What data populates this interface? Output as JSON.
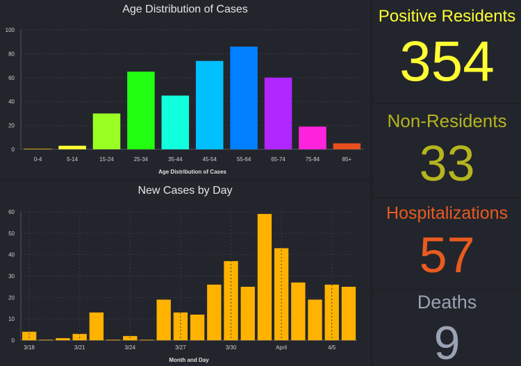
{
  "chart_data": [
    {
      "type": "bar",
      "title": "Age Distribution of Cases",
      "xlabel": "Age Distribution of Cases",
      "ylabel": "",
      "ylim": [
        0,
        100
      ],
      "yticks": [
        0,
        20,
        40,
        60,
        80,
        100
      ],
      "grid": true,
      "categories": [
        "0-4",
        "5-14",
        "15-24",
        "25-34",
        "35-44",
        "45-54",
        "55-64",
        "65-74",
        "75-84",
        "85+"
      ],
      "values": [
        0.5,
        3,
        30,
        65,
        45,
        74,
        86,
        60,
        19,
        5
      ],
      "colors": [
        "#e0b000",
        "#ffff33",
        "#99ff22",
        "#22ff11",
        "#11ffdd",
        "#00c0ff",
        "#0080ff",
        "#b026ff",
        "#ff22dd",
        "#e84f1c"
      ]
    },
    {
      "type": "bar",
      "title": "New Cases by Day",
      "xlabel": "Month and Day",
      "ylabel": "",
      "ylim": [
        0,
        60
      ],
      "yticks": [
        0,
        10,
        20,
        30,
        40,
        50,
        60
      ],
      "grid": true,
      "color": "#ffb300",
      "x": [
        "3/18",
        "3/19",
        "3/20",
        "3/21",
        "3/22",
        "3/23",
        "3/24",
        "3/25",
        "3/26",
        "3/27",
        "3/28",
        "3/29",
        "3/30",
        "3/31",
        "4/1",
        "4/2",
        "4/3",
        "4/4",
        "4/5",
        "4/6"
      ],
      "values": [
        4,
        0,
        1,
        3,
        13,
        0,
        2,
        0,
        19,
        13,
        12,
        26,
        37,
        25,
        59,
        43,
        27,
        19,
        26,
        25
      ],
      "tick_labels": [
        {
          "index": 0,
          "label": "3/18"
        },
        {
          "index": 3,
          "label": "3/21"
        },
        {
          "index": 6,
          "label": "3/24"
        },
        {
          "index": 9,
          "label": "3/27"
        },
        {
          "index": 12,
          "label": "3/30"
        },
        {
          "index": 15,
          "label": "April"
        },
        {
          "index": 18,
          "label": "4/5"
        }
      ]
    }
  ],
  "stats": {
    "positive": {
      "label": "Positive Residents",
      "value": "354",
      "color": "#ffff33"
    },
    "nonres": {
      "label": "Non-Residents",
      "value": "33",
      "color": "#b5b51e"
    },
    "hosp": {
      "label": "Hospitalizations",
      "value": "57",
      "color": "#e85b1f"
    },
    "deaths": {
      "label": "Deaths",
      "value": "9",
      "color": "#9aa3b3"
    }
  }
}
